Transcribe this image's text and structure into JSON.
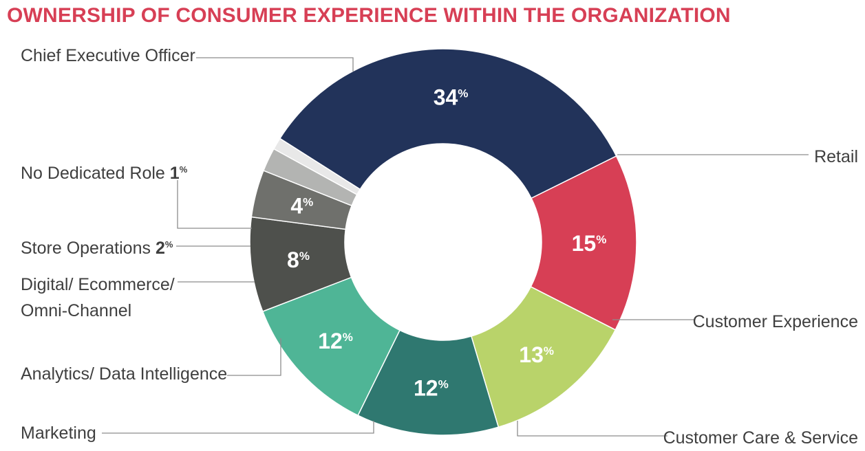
{
  "chart_data": {
    "type": "pie",
    "title": "OWNERSHIP OF CONSUMER EXPERIENCE WITHIN THE ORGANIZATION",
    "donut": true,
    "value_suffix": "%",
    "slices": [
      {
        "label": "Chief Executive Officer",
        "value": 34,
        "color": "#22335a"
      },
      {
        "label": "Retail",
        "value": 15,
        "color": "#d73f55"
      },
      {
        "label": "Customer Experience",
        "value": 13,
        "color": "#b9d36a"
      },
      {
        "label": "Customer Care & Service",
        "value": 12,
        "color": "#2f7870"
      },
      {
        "label": "Marketing",
        "value": 12,
        "color": "#4fb596"
      },
      {
        "label": "Analytics/ Data Intelligence",
        "value": 8,
        "color": "#4e504c"
      },
      {
        "label": "Digital/ Ecommerce/ Omni-Channel",
        "label_lines": [
          "Digital/ Ecommerce/",
          "Omni-Channel"
        ],
        "value": 4,
        "color": "#6f706c"
      },
      {
        "label": "Store Operations",
        "value": 2,
        "color": "#b3b4b2"
      },
      {
        "label": "No Dedicated Role",
        "value": 1,
        "color": "#e8e8e8"
      }
    ]
  },
  "colors": {
    "title": "#d73f55"
  }
}
